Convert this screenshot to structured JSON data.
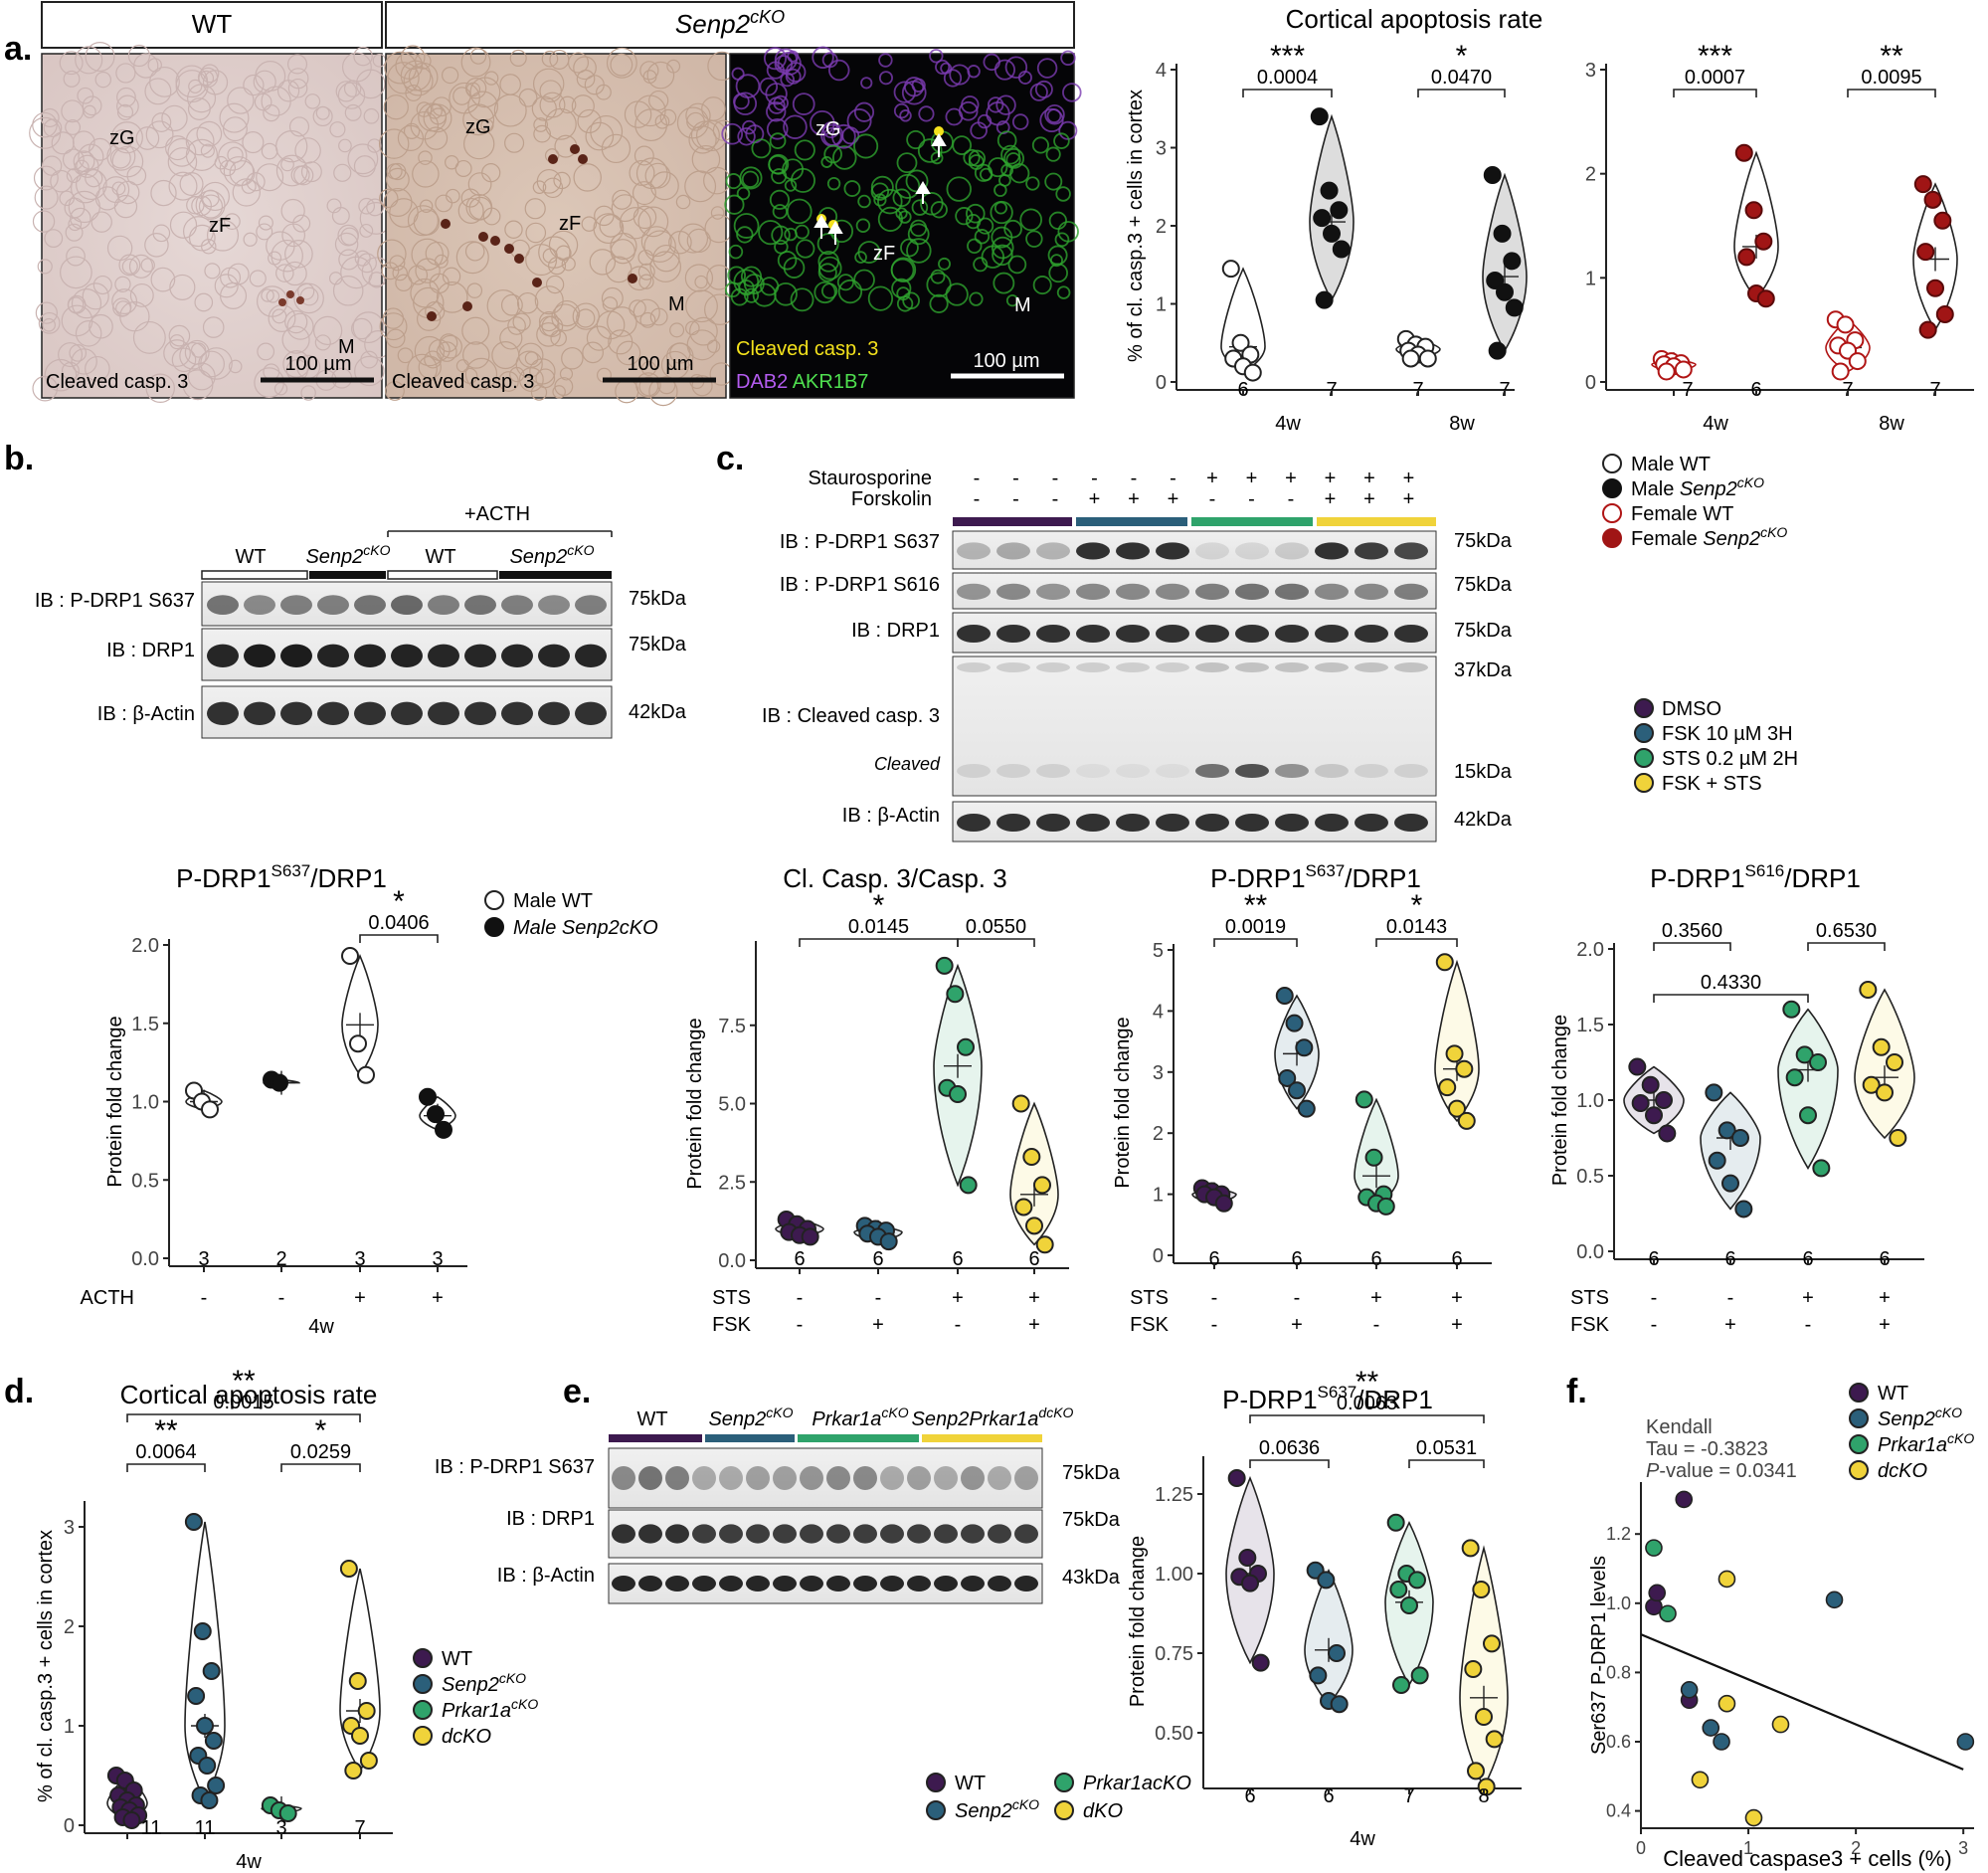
{
  "colors": {
    "dmso": "#3d1a4f",
    "fsk": "#2b5f7a",
    "sts": "#2fa36b",
    "fskSts": "#f0d33a",
    "femaleWT": "#b01515",
    "femaleKO": "#a01515",
    "black": "#111111"
  },
  "panels": {
    "a": {
      "letter": "a.",
      "wt": "WT",
      "ko_base": "Senp2",
      "ko_sup": "cKO",
      "zG": "zG",
      "zF": "zF",
      "M": "M",
      "stain": "Cleaved casp. 3",
      "scale": "100 µm",
      "fl_red": "Cleaved casp. 3",
      "fl_dab2": "DAB2",
      "fl_akr": "AKR1B7",
      "title": "Cortical apoptosis rate"
    },
    "b": {
      "letter": "b.",
      "plus_acth": "+ACTH",
      "wt": "WT",
      "ko_base": "Senp2",
      "ko_sup": "cKO",
      "ib1": "IB : P-DRP1 S637",
      "ib2": "IB : DRP1",
      "ib3": "IB : β-Actin",
      "kda1": "75kDa",
      "kda2": "75kDa",
      "kda3": "42kDa",
      "plot_title_base": "P-DRP1",
      "plot_title_sup": "S637",
      "plot_title_tail": "/DRP1"
    },
    "c": {
      "letter": "c.",
      "sts": "Staurosporine",
      "fsk": "Forskolin",
      "ib1": "IB : P-DRP1 S637",
      "ib2": "IB : P-DRP1 S616",
      "ib3": "IB : DRP1",
      "ib4": "IB : Cleaved casp. 3",
      "cleaved": "Cleaved",
      "ib5": "IB :  β-Actin",
      "kda1": "75kDa",
      "kda2": "75kDa",
      "kda3": "75kDa",
      "kda4": "37kDa",
      "kda5": "15kDa",
      "kda6": "42kDa",
      "plot1_title": "Cl. Casp. 3/Casp. 3",
      "plot2_base": "P-DRP1",
      "plot2_sup": "S637",
      "plot2_tail": "/DRP1",
      "plot3_base": "P-DRP1",
      "plot3_sup": "S616",
      "plot3_tail": "/DRP1"
    },
    "d": {
      "letter": "d.",
      "title": "Cortical apoptosis rate"
    },
    "e": {
      "letter": "e.",
      "wt": "WT",
      "ko_base": "Senp2",
      "ko_sup": "cKO",
      "pk_base": "Prkar1a",
      "pk_sup": "cKO",
      "dko_base": "Senp2Prkar1a",
      "dko_sup": "dcKO",
      "ib1": "IB : P-DRP1 S637",
      "ib2": "IB : DRP1",
      "ib3": "IB :  β-Actin",
      "kda1": "75kDa",
      "kda2": "75kDa",
      "kda3": "43kDa",
      "plot_base": "P-DRP1",
      "plot_sup": "S637",
      "plot_tail": "/DRP1",
      "leg_wt": "WT",
      "leg_ko": "Senp2",
      "leg_ko_sup": "cKO",
      "leg_pk": "Prkar1acKO",
      "leg_dko": "dKO"
    },
    "f": {
      "letter": "f.",
      "kendall": "Kendall",
      "tau": "Tau = -0.3823",
      "pval_it": "P",
      "pval_rest": "-value = 0.0341",
      "leg_wt": "WT",
      "leg_ko_base": "Senp2",
      "leg_ko_sup": "cKO",
      "leg_pk_base": "Prkar1a",
      "leg_pk_sup": "cKO",
      "leg_dko": "dcKO"
    }
  },
  "legends": {
    "sex": [
      {
        "base": "Male WT",
        "sup": ""
      },
      {
        "base": "Male ",
        "it": "Senp2",
        "sup": "cKO"
      },
      {
        "base": "Female WT",
        "sup": ""
      },
      {
        "base": "Female ",
        "it": "Senp2",
        "sup": "cKO"
      }
    ],
    "treat": [
      "DMSO",
      "FSK 10 µM 3H",
      "STS 0.2 µM 2H",
      "FSK + STS"
    ],
    "b_plot": [
      "Male WT",
      "Male Senp2cKO"
    ],
    "d_plot": [
      {
        "base": "WT",
        "sup": ""
      },
      {
        "base": "Senp2",
        "sup": "cKO"
      },
      {
        "base": "Prkar1a",
        "sup": "cKO"
      },
      {
        "base": "dcKO",
        "sup": ""
      }
    ]
  },
  "chart_data": [
    {
      "id": "a_male",
      "type": "scatter",
      "title": "Cortical apoptosis rate",
      "ylabel": "% of cl. casp.3 + cells in cortex",
      "ylim": [
        0,
        4
      ],
      "yticks": [
        0,
        1,
        2,
        3,
        4
      ],
      "categories": [
        "4w",
        "8w"
      ],
      "groups": [
        {
          "name": "Male WT",
          "time": "4w",
          "n": "6",
          "values": [
            1.45,
            0.5,
            0.35,
            0.3,
            0.2,
            0.12
          ],
          "mean": 0.45
        },
        {
          "name": "Male Senp2cKO",
          "time": "4w",
          "n": "7",
          "values": [
            3.4,
            2.45,
            2.2,
            2.1,
            1.9,
            1.7,
            1.05
          ],
          "mean": 2.05
        },
        {
          "name": "Male WT",
          "time": "8w",
          "n": "7",
          "values": [
            0.55,
            0.48,
            0.45,
            0.4,
            0.35,
            0.3,
            0.3
          ],
          "mean": 0.42
        },
        {
          "name": "Male Senp2cKO",
          "time": "8w",
          "n": "7",
          "values": [
            2.65,
            1.9,
            1.55,
            1.3,
            1.15,
            0.95,
            0.4
          ],
          "mean": 1.35
        }
      ],
      "comparisons": [
        {
          "p": "0.0004",
          "stars": "***"
        },
        {
          "p": "0.0470",
          "stars": "*"
        }
      ]
    },
    {
      "id": "a_female",
      "type": "scatter",
      "ylim": [
        0,
        3
      ],
      "yticks": [
        0,
        1,
        2,
        3
      ],
      "categories": [
        "4w",
        "8w"
      ],
      "groups": [
        {
          "name": "Female WT",
          "time": "4w",
          "n": "7",
          "values": [
            0.22,
            0.2,
            0.18,
            0.17,
            0.15,
            0.12,
            0.1
          ],
          "mean": 0.17
        },
        {
          "name": "Female Senp2cKO",
          "time": "4w",
          "n": "6",
          "values": [
            2.2,
            1.65,
            1.35,
            1.2,
            0.85,
            0.8
          ],
          "mean": 1.3
        },
        {
          "name": "Female WT",
          "time": "8w",
          "n": "7",
          "values": [
            0.6,
            0.55,
            0.4,
            0.35,
            0.3,
            0.2,
            0.1
          ],
          "mean": 0.33
        },
        {
          "name": "Female Senp2cKO",
          "time": "8w",
          "n": "7",
          "values": [
            1.9,
            1.75,
            1.55,
            1.25,
            0.9,
            0.65,
            0.5
          ],
          "mean": 1.18
        }
      ],
      "comparisons": [
        {
          "p": "0.0007",
          "stars": "***"
        },
        {
          "p": "0.0095",
          "stars": "**"
        }
      ]
    },
    {
      "id": "b_plot",
      "type": "scatter",
      "ylabel": "Protein fold change",
      "ylim": [
        0,
        2
      ],
      "yticks": [
        "0.0",
        "0.5",
        "1.0",
        "1.5",
        "2.0"
      ],
      "xrow_label": "ACTH",
      "xrow": [
        "-",
        "-",
        "+",
        "+"
      ],
      "xgroup": "4w",
      "groups": [
        {
          "name": "Male WT",
          "n": "3",
          "values": [
            1.07,
            1.0,
            0.95
          ],
          "mean": 1.0
        },
        {
          "name": "Male Senp2cKO",
          "n": "2",
          "values": [
            1.14,
            1.12
          ],
          "mean": 1.12
        },
        {
          "name": "Male WT +ACTH",
          "n": "3",
          "values": [
            1.93,
            1.37,
            1.17
          ],
          "mean": 1.49
        },
        {
          "name": "Male Senp2cKO +ACTH",
          "n": "3",
          "values": [
            1.03,
            0.92,
            0.82
          ],
          "mean": 0.91
        }
      ],
      "comparisons": [
        {
          "p": "0.0406",
          "stars": "*"
        }
      ]
    },
    {
      "id": "c_clcasp",
      "type": "scatter",
      "title": "Cl. Casp. 3/Casp. 3",
      "ylabel": "Protein fold change",
      "ylim": [
        0,
        10
      ],
      "yticks": [
        "0.0",
        "2.5",
        "5.0",
        "7.5"
      ],
      "xrows": {
        "STS": [
          "-",
          "-",
          "+",
          "+"
        ],
        "FSK": [
          "-",
          "+",
          "-",
          "+"
        ]
      },
      "groups": [
        {
          "name": "DMSO",
          "n": "6",
          "values": [
            1.3,
            1.15,
            1.0,
            0.9,
            0.8,
            0.75
          ],
          "mean": 1.0
        },
        {
          "name": "FSK 10 µM 3H",
          "n": "6",
          "values": [
            1.1,
            1.0,
            0.95,
            0.85,
            0.75,
            0.6
          ],
          "mean": 0.9
        },
        {
          "name": "STS 0.2 µM 2H",
          "n": "6",
          "values": [
            9.4,
            8.5,
            6.8,
            5.5,
            5.3,
            2.4
          ],
          "mean": 6.2
        },
        {
          "name": "FSK + STS",
          "n": "6",
          "values": [
            5.0,
            3.3,
            2.4,
            1.7,
            1.1,
            0.5
          ],
          "mean": 2.1
        }
      ],
      "comparisons": [
        {
          "p": "0.0145",
          "stars": "*"
        },
        {
          "p": "0.0550",
          "stars": ""
        }
      ]
    },
    {
      "id": "c_s637",
      "type": "scatter",
      "title": "P-DRP1 S637/DRP1",
      "ylabel": "Protein fold change",
      "ylim": [
        0,
        5
      ],
      "yticks": [
        "0",
        "1",
        "2",
        "3",
        "4",
        "5"
      ],
      "groups": [
        {
          "name": "DMSO",
          "n": "6",
          "values": [
            1.1,
            1.05,
            1.0,
            1.0,
            0.95,
            0.85
          ],
          "mean": 1.0
        },
        {
          "name": "FSK 10 µM 3H",
          "n": "6",
          "values": [
            4.25,
            3.8,
            3.4,
            2.9,
            2.7,
            2.4
          ],
          "mean": 3.3
        },
        {
          "name": "STS 0.2 µM 2H",
          "n": "6",
          "values": [
            2.55,
            1.6,
            1.0,
            0.95,
            0.85,
            0.8
          ],
          "mean": 1.3
        },
        {
          "name": "FSK + STS",
          "n": "6",
          "values": [
            4.8,
            3.3,
            3.05,
            2.75,
            2.4,
            2.2
          ],
          "mean": 3.05
        }
      ],
      "comparisons": [
        {
          "p": "0.0019",
          "stars": "**"
        },
        {
          "p": "0.0143",
          "stars": "*"
        }
      ]
    },
    {
      "id": "c_s616",
      "type": "scatter",
      "title": "P-DRP1 S616/DRP1",
      "ylabel": "Protein fold change",
      "ylim": [
        0,
        2
      ],
      "yticks": [
        "0.0",
        "0.5",
        "1.0",
        "1.5",
        "2.0"
      ],
      "groups": [
        {
          "name": "DMSO",
          "n": "6",
          "values": [
            1.22,
            1.1,
            1.0,
            0.98,
            0.9,
            0.78
          ],
          "mean": 1.0
        },
        {
          "name": "FSK 10 µM 3H",
          "n": "6",
          "values": [
            1.05,
            0.8,
            0.75,
            0.6,
            0.45,
            0.28
          ],
          "mean": 0.75
        },
        {
          "name": "STS 0.2 µM 2H",
          "n": "6",
          "values": [
            1.6,
            1.3,
            1.25,
            1.15,
            0.9,
            0.55
          ],
          "mean": 1.2
        },
        {
          "name": "FSK + STS",
          "n": "6",
          "values": [
            1.73,
            1.35,
            1.25,
            1.1,
            1.05,
            0.75
          ],
          "mean": 1.15
        }
      ],
      "comparisons": [
        {
          "p": "0.3560",
          "stars": ""
        },
        {
          "p": "0.4330",
          "stars": ""
        },
        {
          "p": "0.6530",
          "stars": ""
        }
      ]
    },
    {
      "id": "d_plot",
      "type": "scatter",
      "title": "Cortical apoptosis rate",
      "ylabel": "% of cl. casp.3 + cells in cortex",
      "ylim": [
        0,
        3.2
      ],
      "yticks": [
        "0",
        "1",
        "2",
        "3"
      ],
      "xgroup": "4w",
      "groups": [
        {
          "name": "WT",
          "n": "11",
          "values": [
            0.5,
            0.45,
            0.35,
            0.3,
            0.25,
            0.2,
            0.18,
            0.15,
            0.1,
            0.08,
            0.05
          ],
          "mean": 0.22
        },
        {
          "name": "Senp2cKO",
          "n": "11",
          "values": [
            3.05,
            1.95,
            1.55,
            1.3,
            1.0,
            0.85,
            0.7,
            0.6,
            0.4,
            0.3,
            0.25
          ],
          "mean": 1.0
        },
        {
          "name": "Prkar1acKO",
          "n": "3",
          "values": [
            0.2,
            0.15,
            0.12
          ],
          "mean": 0.17
        },
        {
          "name": "dcKO",
          "n": "7",
          "values": [
            2.58,
            1.45,
            1.15,
            1.0,
            0.9,
            0.65,
            0.55
          ],
          "mean": 1.15
        }
      ],
      "comparisons": [
        {
          "p": "0.0064",
          "stars": "**"
        },
        {
          "p": "0.0259",
          "stars": "*"
        },
        {
          "p": "0.0015",
          "stars": "**"
        }
      ]
    },
    {
      "id": "e_plot",
      "type": "scatter",
      "title": "P-DRP1 S637/DRP1",
      "ylabel": "Protein fold change",
      "ylim": [
        0.35,
        1.35
      ],
      "yticks": [
        "0.50",
        "0.75",
        "1.00",
        "1.25"
      ],
      "xgroup": "4w",
      "groups": [
        {
          "name": "WT",
          "n": "6",
          "values": [
            1.3,
            1.05,
            1.0,
            0.99,
            0.97,
            0.72
          ],
          "mean": 1.0
        },
        {
          "name": "Senp2cKO",
          "n": "6",
          "values": [
            1.01,
            0.98,
            0.75,
            0.68,
            0.6,
            0.59
          ],
          "mean": 0.76
        },
        {
          "name": "Prkar1acKO",
          "n": "7",
          "values": [
            1.16,
            1.0,
            0.98,
            0.95,
            0.9,
            0.68,
            0.65
          ],
          "mean": 0.91
        },
        {
          "name": "dKO",
          "n": "8",
          "values": [
            1.08,
            0.95,
            0.78,
            0.7,
            0.55,
            0.48,
            0.38,
            0.33
          ],
          "mean": 0.61
        }
      ],
      "comparisons": [
        {
          "p": "0.0636",
          "stars": ""
        },
        {
          "p": "0.0531",
          "stars": ""
        },
        {
          "p": "0.0063",
          "stars": "**"
        }
      ]
    },
    {
      "id": "f_plot",
      "type": "scatter",
      "xlabel": "Cleaved caspase3 + cells (%)",
      "ylabel": "Ser637 P-DRP1 levels",
      "xlim": [
        0,
        3.1
      ],
      "ylim": [
        0.35,
        1.35
      ],
      "xticks": [
        "0",
        "1",
        "2",
        "3"
      ],
      "yticks": [
        "0.4",
        "0.6",
        "0.8",
        "1.0",
        "1.2"
      ],
      "points": [
        {
          "g": "WT",
          "x": 0.12,
          "y": 0.99
        },
        {
          "g": "WT",
          "x": 0.15,
          "y": 1.03
        },
        {
          "g": "WT",
          "x": 0.4,
          "y": 1.3
        },
        {
          "g": "WT",
          "x": 0.45,
          "y": 0.72
        },
        {
          "g": "Senp2cKO",
          "x": 0.45,
          "y": 0.75
        },
        {
          "g": "Senp2cKO",
          "x": 0.65,
          "y": 0.64
        },
        {
          "g": "Senp2cKO",
          "x": 0.75,
          "y": 0.6
        },
        {
          "g": "Senp2cKO",
          "x": 1.8,
          "y": 1.01
        },
        {
          "g": "Senp2cKO",
          "x": 3.02,
          "y": 0.6
        },
        {
          "g": "Prkar1acKO",
          "x": 0.12,
          "y": 1.16
        },
        {
          "g": "Prkar1acKO",
          "x": 0.25,
          "y": 0.97
        },
        {
          "g": "dcKO",
          "x": 0.55,
          "y": 0.49
        },
        {
          "g": "dcKO",
          "x": 0.8,
          "y": 0.71
        },
        {
          "g": "dcKO",
          "x": 0.8,
          "y": 1.07
        },
        {
          "g": "dcKO",
          "x": 1.05,
          "y": 0.38
        },
        {
          "g": "dcKO",
          "x": 1.3,
          "y": 0.65
        }
      ],
      "fit": {
        "x": [
          0,
          3.0
        ],
        "y": [
          0.91,
          0.52
        ]
      }
    }
  ]
}
